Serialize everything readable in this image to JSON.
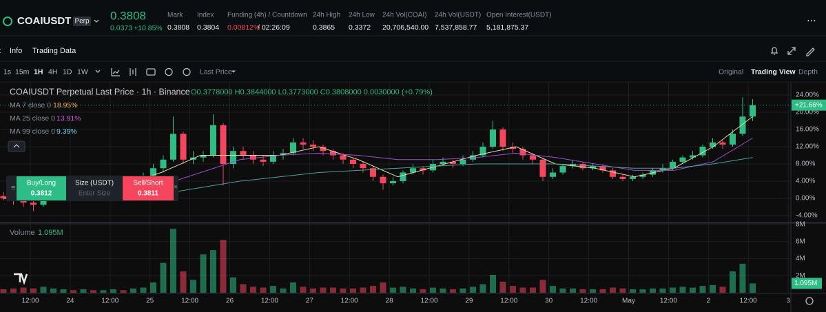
{
  "header": {
    "symbol": "COAIUSDT",
    "badge": "Perp",
    "price": "0.3808",
    "change": "0.0373",
    "change_pct": "+10.85%",
    "stats": [
      {
        "label": "Mark",
        "value": "0.3808"
      },
      {
        "label": "Index",
        "value": "0.3804"
      },
      {
        "label": "Funding (4h) / Countdown",
        "value": "0.00812%",
        "countdown": "/ 02:26:09"
      },
      {
        "label": "24h High",
        "value": "0.3865"
      },
      {
        "label": "24h Low",
        "value": "0.3372"
      },
      {
        "label": "24h Vol(COAI)",
        "value": "20,706,540.00"
      },
      {
        "label": "24h Vol(USDT)",
        "value": "7,537,858.77"
      },
      {
        "label": "Open Interest(USDT)",
        "value": "5,181,875.37"
      }
    ]
  },
  "tabs": [
    "t",
    "Info",
    "Trading Data"
  ],
  "toolbar": {
    "intervals": [
      "1s",
      "15m",
      "1H",
      "4H",
      "1D",
      "1W"
    ],
    "price_type": "Last Price",
    "views": [
      "Original",
      "Trading View",
      "Depth"
    ]
  },
  "order_panel": {
    "buy": "Buy/Long",
    "buy_price": "0.3812",
    "size": "Size (USDT)",
    "size_placeholder": "Enter Size",
    "sell": "Sell/Short",
    "sell_price": "0.3811"
  },
  "chart_data": {
    "type": "candlestick",
    "title": "COAIUSDT Perpetual Last Price · 1h · Binance",
    "ohlc_legend": "O0.3778000 H0.3844000 L0.3773000 C0.3808000 0.0030000 (+0.79%)",
    "up_color": "#2ebd85",
    "down_color": "#f6465d",
    "grid": true,
    "series": [
      {
        "name": "COAIUSDT",
        "last_label": "+21.66%",
        "open": [
          0.5,
          0,
          -0.5,
          -1,
          -1.5,
          1,
          2,
          2.5,
          2,
          3,
          2.5,
          3,
          3.5,
          3,
          4,
          5,
          7,
          9,
          15,
          9,
          9.5,
          10,
          17,
          8,
          11,
          10,
          9,
          8.5,
          10,
          10.5,
          13,
          12.5,
          12,
          11,
          10,
          9,
          8,
          7,
          5,
          3.5,
          4,
          6,
          7,
          6.5,
          8,
          8.5,
          8,
          9,
          10,
          12,
          16,
          12,
          11.5,
          10,
          9,
          5,
          6,
          7.5,
          8,
          7,
          7.5,
          6.5,
          5,
          4.5,
          5,
          5.5,
          6.5,
          7,
          8.5,
          9.5,
          10,
          12,
          13,
          12.5,
          15,
          19
        ],
        "high": [
          1.5,
          0.5,
          0,
          -0.5,
          1.5,
          3,
          3.5,
          3,
          4,
          3.5,
          4,
          4.5,
          4,
          5,
          6,
          8,
          10,
          19,
          15.5,
          11,
          11,
          19.5,
          17.5,
          12,
          12,
          11,
          10,
          11,
          11.5,
          14,
          14,
          13.5,
          12.5,
          11.5,
          10.5,
          9.5,
          8.5,
          7.5,
          5.5,
          5,
          6.5,
          8,
          7.5,
          9,
          9.5,
          9,
          10,
          11,
          13,
          18,
          16.5,
          13,
          12,
          10.5,
          9.5,
          7,
          8,
          9,
          8.5,
          8,
          8,
          7,
          5.5,
          5.5,
          6,
          7,
          8,
          9,
          10,
          11,
          12.5,
          14,
          13.5,
          16,
          23.5,
          23
        ],
        "low": [
          -0.5,
          -1.5,
          -2,
          -3,
          -2,
          0.5,
          1.5,
          1,
          1.5,
          2,
          2,
          2.5,
          2.5,
          2.5,
          3.5,
          4.5,
          6,
          8.5,
          8,
          8,
          8.5,
          9.5,
          3,
          7,
          9,
          8,
          7.5,
          8,
          9,
          10,
          11.5,
          11,
          10,
          9,
          8,
          7,
          6,
          4,
          2,
          3,
          3.5,
          5.5,
          5.5,
          6,
          7.5,
          7,
          7.5,
          8.5,
          9.5,
          11.5,
          11,
          10.5,
          9,
          8,
          4,
          4.5,
          5.5,
          7,
          6.5,
          6.5,
          6,
          4.5,
          4,
          4,
          4.5,
          5,
          6,
          6.5,
          8,
          9,
          9.5,
          11.5,
          11.5,
          12,
          14.5,
          18
        ],
        "close": [
          0,
          -0.5,
          -1,
          -1.5,
          1,
          2,
          2.5,
          2,
          3,
          2.5,
          3,
          3.5,
          3,
          4,
          5,
          7,
          9,
          15,
          9,
          9.5,
          10,
          17,
          8,
          11,
          10,
          9,
          8.5,
          10,
          10.5,
          13,
          12.5,
          12,
          11,
          10,
          9,
          8,
          7,
          5,
          3.5,
          4,
          6,
          7,
          6.5,
          8,
          8.5,
          8,
          9,
          10,
          12,
          16,
          12,
          11.5,
          10,
          9,
          5,
          6,
          7.5,
          8,
          7,
          7.5,
          6.5,
          5,
          4.5,
          5,
          5.5,
          6.5,
          7,
          8.5,
          9.5,
          10,
          12,
          13,
          12.5,
          15,
          19,
          21.66
        ]
      }
    ],
    "moving_averages": [
      {
        "name": "MA 7 close 0",
        "legend_value": "18.95%",
        "color": "#f0a94b",
        "line_color": "#e8d9a0",
        "values": [
          0,
          0,
          2.5,
          3,
          6,
          10,
          10,
          10,
          12,
          9,
          5,
          7.5,
          10,
          12,
          8,
          7,
          5,
          7,
          12,
          19
        ]
      },
      {
        "name": "MA 25 close 0",
        "legend_value": "13.91%",
        "color": "#d05ce3",
        "line_color": "#9c4fd0",
        "values": [
          null,
          null,
          null,
          null,
          3,
          6,
          9,
          10,
          10.5,
          10,
          9,
          9,
          9.5,
          10.5,
          9.5,
          8,
          6.5,
          6.5,
          8.5,
          14
        ]
      },
      {
        "name": "MA 99 close 0",
        "legend_value": "9.39%",
        "color": "#6fd3f0",
        "line_color": "#4f9f9a",
        "values": [
          null,
          null,
          null,
          null,
          1,
          2.5,
          4,
          5,
          6,
          6.5,
          7,
          7.5,
          8,
          8,
          8,
          7.5,
          7,
          7,
          8,
          9.5
        ]
      }
    ],
    "ylim": [
      -5.44,
      26.56
    ],
    "yticks": [
      {
        "value": 24,
        "label": "24.00%"
      },
      {
        "value": 20,
        "label": "20.00%"
      },
      {
        "value": 16,
        "label": "16.00%"
      },
      {
        "value": 12,
        "label": "12.00%"
      },
      {
        "value": 8,
        "label": "8.00%"
      },
      {
        "value": 4,
        "label": "4.00%"
      },
      {
        "value": 0,
        "label": "0.00%"
      },
      {
        "value": -4,
        "label": "-4.00%"
      }
    ],
    "volume": {
      "name": "Volume",
      "last_label": "1.095M",
      "values": [
        0.4,
        0.5,
        0.6,
        0.5,
        0.7,
        0.5,
        0.4,
        0.3,
        0.4,
        0.3,
        0.3,
        0.4,
        0.3,
        0.5,
        0.6,
        1.2,
        3.5,
        7.5,
        2.5,
        1.5,
        4.5,
        5.0,
        6.2,
        1.8,
        1.0,
        0.7,
        0.6,
        0.8,
        0.5,
        1.2,
        0.7,
        0.5,
        0.6,
        0.6,
        0.5,
        0.5,
        0.6,
        0.8,
        1.2,
        0.6,
        0.7,
        0.5,
        0.4,
        0.6,
        0.5,
        0.4,
        0.5,
        0.7,
        1.0,
        2.1,
        1.3,
        0.8,
        0.6,
        0.6,
        1.5,
        0.8,
        0.5,
        0.5,
        0.4,
        0.4,
        0.4,
        0.6,
        0.5,
        0.4,
        0.4,
        0.5,
        0.5,
        0.6,
        0.7,
        0.6,
        0.8,
        0.9,
        0.7,
        2.5,
        3.4,
        1.095
      ],
      "ylim": [
        0,
        8.08
      ],
      "yticks": [
        {
          "value": 8,
          "label": "8M"
        },
        {
          "value": 6,
          "label": "6M"
        },
        {
          "value": 4,
          "label": "4M"
        },
        {
          "value": 2,
          "label": "2M"
        }
      ]
    },
    "x_tick_labels": [
      "12:00",
      "24",
      "12:00",
      "25",
      "12:00",
      "26",
      "12:00",
      "27",
      "12:00",
      "28",
      "12:00",
      "29",
      "12:00",
      "30",
      "12:00",
      "May",
      "12:00",
      "2",
      "12:00",
      "3"
    ]
  }
}
